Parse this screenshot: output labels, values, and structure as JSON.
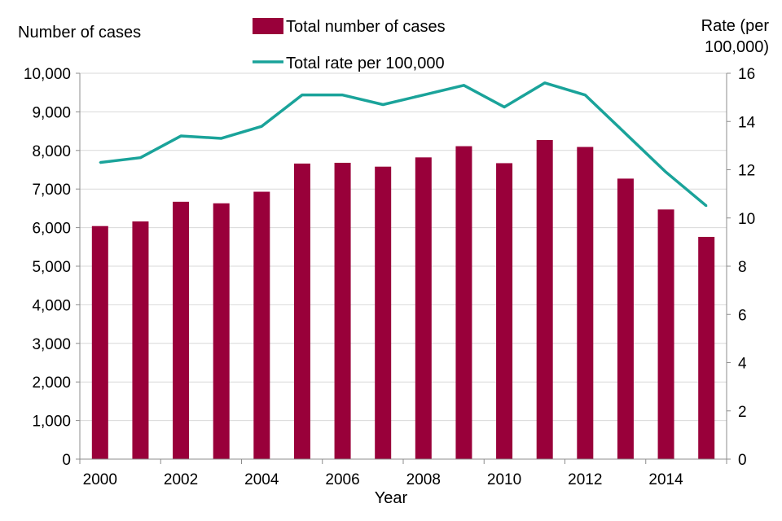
{
  "chart_data": {
    "type": "bar",
    "title": "",
    "xlabel": "Year",
    "ylabel_left": "Number of cases",
    "ylabel_right": [
      "Rate (per",
      "100,000)"
    ],
    "categories": [
      "2000",
      "2001",
      "2002",
      "2003",
      "2004",
      "2005",
      "2006",
      "2007",
      "2008",
      "2009",
      "2010",
      "2011",
      "2012",
      "2013",
      "2014",
      "2015"
    ],
    "x_tick_labels": [
      "2000",
      "2002",
      "2004",
      "2006",
      "2008",
      "2010",
      "2012",
      "2014"
    ],
    "ylim_left": [
      0,
      10000
    ],
    "ylim_right": [
      0,
      16
    ],
    "y_ticks_left": [
      "0",
      "1,000",
      "2,000",
      "3,000",
      "4,000",
      "5,000",
      "6,000",
      "7,000",
      "8,000",
      "9,000",
      "10,000"
    ],
    "y_ticks_right": [
      "0",
      "2",
      "4",
      "6",
      "8",
      "10",
      "12",
      "14",
      "16"
    ],
    "grid": true,
    "series": [
      {
        "name": "Total number of cases",
        "type": "bar",
        "axis": "left",
        "color": "#99003a",
        "values": [
          6040,
          6160,
          6670,
          6630,
          6930,
          7660,
          7680,
          7580,
          7820,
          8110,
          7670,
          8270,
          8090,
          7270,
          6470,
          5760
        ]
      },
      {
        "name": "Total rate per 100,000",
        "type": "line",
        "axis": "right",
        "color": "#1aa39a",
        "values": [
          12.3,
          12.5,
          13.4,
          13.3,
          13.8,
          15.1,
          15.1,
          14.7,
          15.1,
          15.5,
          14.6,
          15.6,
          15.1,
          13.5,
          11.9,
          10.5
        ]
      }
    ],
    "legend_position": "top-center"
  }
}
